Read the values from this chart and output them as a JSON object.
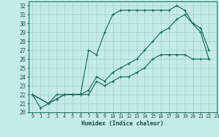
{
  "xlabel": "Humidex (Indice chaleur)",
  "bg_color": "#c5ebe6",
  "grid_color": "#9dcfca",
  "line_color": "#1a6b5a",
  "xlim": [
    -0.5,
    23
  ],
  "ylim": [
    20,
    32.5
  ],
  "xticks": [
    0,
    1,
    2,
    3,
    4,
    5,
    6,
    7,
    8,
    9,
    10,
    11,
    12,
    13,
    14,
    15,
    16,
    17,
    18,
    19,
    20,
    21,
    22,
    23
  ],
  "yticks": [
    20,
    21,
    22,
    23,
    24,
    25,
    26,
    27,
    28,
    29,
    30,
    31,
    32
  ],
  "line1_x": [
    0,
    1,
    2,
    3,
    4,
    5,
    6,
    7,
    8,
    9,
    10,
    11,
    12,
    13,
    14,
    15,
    16,
    17,
    18,
    19,
    20,
    21,
    22
  ],
  "line1_y": [
    22,
    20.5,
    21,
    21.5,
    22,
    22,
    22,
    27,
    26.5,
    29,
    31,
    31.5,
    31.5,
    31.5,
    31.5,
    31.5,
    31.5,
    31.5,
    32,
    31.5,
    30,
    29.5,
    27
  ],
  "line2_x": [
    0,
    2,
    3,
    4,
    5,
    6,
    7,
    8,
    9,
    10,
    11,
    12,
    13,
    14,
    15,
    16,
    17,
    18,
    19,
    20,
    21,
    22
  ],
  "line2_y": [
    22,
    21,
    22,
    22,
    22,
    22,
    22,
    23.5,
    23,
    23.5,
    24,
    24,
    24.5,
    25,
    26,
    26.5,
    26.5,
    26.5,
    26.5,
    26,
    26,
    26
  ],
  "line3_x": [
    0,
    2,
    3,
    4,
    5,
    6,
    7,
    8,
    9,
    10,
    11,
    12,
    13,
    14,
    15,
    16,
    17,
    18,
    19,
    20,
    21,
    22
  ],
  "line3_y": [
    22,
    21,
    21.5,
    22,
    22,
    22,
    22.5,
    24,
    23.5,
    24.5,
    25,
    25.5,
    26,
    27,
    28,
    29,
    29.5,
    30.5,
    31,
    30,
    29,
    26
  ]
}
